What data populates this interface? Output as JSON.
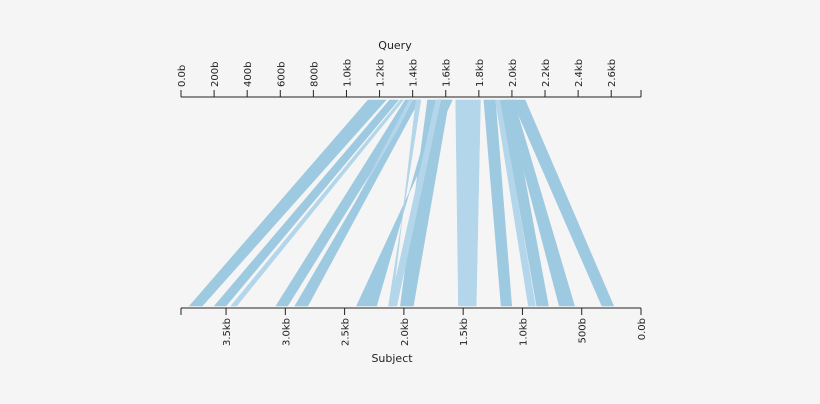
{
  "query_axis": {
    "label": "Query",
    "ticks": [
      {
        "label": "0.0b",
        "bp": 0
      },
      {
        "label": "200b",
        "bp": 200
      },
      {
        "label": "400b",
        "bp": 400
      },
      {
        "label": "600b",
        "bp": 600
      },
      {
        "label": "800b",
        "bp": 800
      },
      {
        "label": "1.0kb",
        "bp": 1000
      },
      {
        "label": "1.2kb",
        "bp": 1200
      },
      {
        "label": "1.4kb",
        "bp": 1400
      },
      {
        "label": "1.6kb",
        "bp": 1600
      },
      {
        "label": "1.8kb",
        "bp": 1800
      },
      {
        "label": "2.0kb",
        "bp": 2000
      },
      {
        "label": "2.2kb",
        "bp": 2200
      },
      {
        "label": "2.4kb",
        "bp": 2400
      },
      {
        "label": "2.6kb",
        "bp": 2600
      }
    ],
    "max_bp": 2780
  },
  "subject_axis": {
    "label": "Subject",
    "orientation": "reversed",
    "ticks": [
      {
        "label": "3.5kb",
        "bp": 3500
      },
      {
        "label": "3.0kb",
        "bp": 3000
      },
      {
        "label": "2.5kb",
        "bp": 2500
      },
      {
        "label": "2.0kb",
        "bp": 2000
      },
      {
        "label": "1.5kb",
        "bp": 1500
      },
      {
        "label": "1.0kb",
        "bp": 1000
      },
      {
        "label": "500b",
        "bp": 500
      },
      {
        "label": "0.0b",
        "bp": 0
      }
    ],
    "max_bp": 3880
  },
  "colors": {
    "band": "#9ecae1",
    "band_alt": "#b3d6ea",
    "axis": "#222222",
    "background": "#f5f5f5"
  },
  "alignments": [
    {
      "q": [
        1130,
        1240
      ],
      "s": [
        3810,
        3700
      ],
      "color": "#9ecae1"
    },
    {
      "q": [
        1260,
        1315
      ],
      "s": [
        3600,
        3500
      ],
      "color": "#9ecae1"
    },
    {
      "q": [
        1325,
        1345
      ],
      "s": [
        3460,
        3410
      ],
      "color": "#b3d6ea"
    },
    {
      "q": [
        1355,
        1420
      ],
      "s": [
        3080,
        2980
      ],
      "color": "#9ecae1"
    },
    {
      "q": [
        1380,
        1400
      ],
      "s": [
        2870,
        2820
      ],
      "color": "#b3d6ea"
    },
    {
      "q": [
        1415,
        1440
      ],
      "s": [
        2920,
        2810
      ],
      "color": "#9ecae1"
    },
    {
      "q": [
        1640,
        1540
      ],
      "s": [
        2400,
        2230
      ],
      "color": "#9ecae1"
    },
    {
      "q": [
        1450,
        1420
      ],
      "s": [
        2130,
        2100
      ],
      "color": "#b3d6ea"
    },
    {
      "q": [
        1490,
        1620
      ],
      "s": [
        2030,
        1920
      ],
      "color": "#9ecae1"
    },
    {
      "q": [
        1540,
        1570
      ],
      "s": [
        2120,
        2060
      ],
      "color": "#b3d6ea"
    },
    {
      "q": [
        1660,
        1810
      ],
      "s": [
        1540,
        1390
      ],
      "color": "#b3d6ea"
    },
    {
      "q": [
        1830,
        1900
      ],
      "s": [
        1180,
        1090
      ],
      "color": "#9ecae1"
    },
    {
      "q": [
        1900,
        1930
      ],
      "s": [
        950,
        890
      ],
      "color": "#b3d6ea"
    },
    {
      "q": [
        1930,
        1990
      ],
      "s": [
        880,
        780
      ],
      "color": "#9ecae1"
    },
    {
      "q": [
        1960,
        2010
      ],
      "s": [
        690,
        560
      ],
      "color": "#9ecae1"
    },
    {
      "q": [
        2000,
        2080
      ],
      "s": [
        330,
        230
      ],
      "color": "#9ecae1"
    }
  ]
}
